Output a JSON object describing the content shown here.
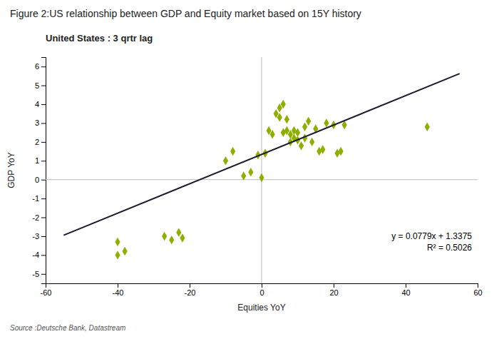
{
  "chart_data": {
    "type": "scatter",
    "title": "Figure 2:US relationship between GDP and Equity market based on 15Y history",
    "subtitle": "United States : 3 qrtr lag",
    "xlabel": "Equities YoY",
    "ylabel": "GDP YoY",
    "source": "Source :Deutsche Bank, Datastream",
    "annotations": [
      "y = 0.0779x + 1.3375",
      "R² = 0.5026"
    ],
    "xlim": [
      -60,
      60
    ],
    "ylim": [
      -5.5,
      6.5
    ],
    "xticks": [
      -60,
      -40,
      -20,
      0,
      20,
      40,
      60
    ],
    "yticks": [
      -5,
      -4,
      -3,
      -2,
      -1,
      0,
      1,
      2,
      3,
      4,
      5,
      6
    ],
    "grid": false,
    "series": [
      {
        "type": "scatter",
        "color": "#8db000",
        "marker": "diamond",
        "x": [
          -40,
          -40,
          -38,
          -27,
          -25,
          -23,
          -22,
          -10,
          -8,
          -5,
          -3,
          -1,
          0,
          1,
          2,
          3,
          4,
          5,
          5,
          6,
          6,
          7,
          7,
          8,
          8,
          9,
          9,
          10,
          10,
          11,
          12,
          12,
          13,
          14,
          15,
          16,
          17,
          18,
          20,
          21,
          22,
          23,
          46
        ],
        "values": [
          -4.0,
          -3.3,
          -3.8,
          -3.0,
          -3.2,
          -2.8,
          -3.1,
          1.0,
          1.5,
          0.2,
          0.4,
          1.3,
          0.1,
          1.4,
          2.6,
          2.4,
          3.5,
          3.8,
          3.3,
          2.5,
          4.0,
          2.6,
          3.2,
          2.4,
          2.0,
          2.6,
          2.2,
          2.1,
          2.5,
          1.8,
          2.2,
          2.8,
          3.1,
          2.0,
          2.7,
          1.5,
          1.6,
          3.0,
          2.9,
          1.4,
          1.5,
          2.9,
          2.8
        ]
      },
      {
        "type": "line",
        "color": "#1c1c2e",
        "line_style": "solid",
        "x": [
          -55,
          55
        ],
        "values": [
          -2.947,
          5.622
        ]
      }
    ]
  }
}
